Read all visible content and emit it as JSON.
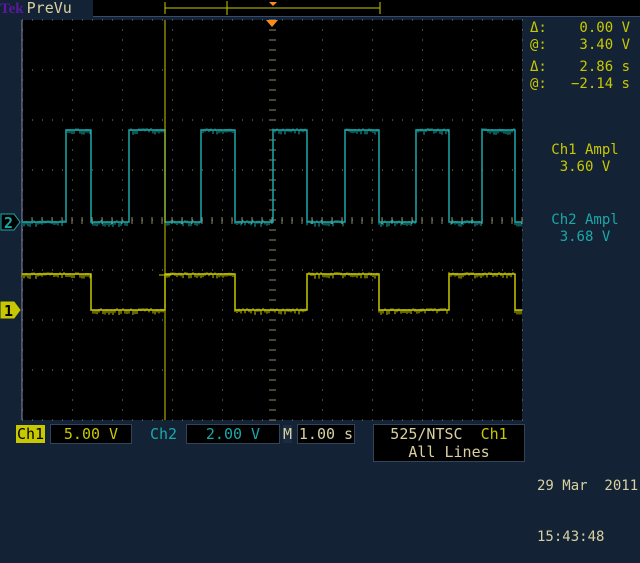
{
  "brand": {
    "logo": "Tek",
    "mode": "PreVu"
  },
  "cursors": {
    "volt_delta": "0.00 V",
    "volt_at": "3.40 V",
    "time_delta": "2.86 s",
    "time_at": "−2.14 s",
    "delta_symbol": "Δ:",
    "at_symbol": "@:"
  },
  "measurements": [
    {
      "label": "Ch1 Ampl",
      "value": "3.60 V",
      "color": "#c8c800"
    },
    {
      "label": "Ch2 Ampl",
      "value": "3.68 V",
      "color": "#1aa8a8"
    }
  ],
  "bottom": {
    "ch1_label": "Ch1",
    "ch1_scale": "5.00 V",
    "ch2_label": "Ch2",
    "ch2_scale": "2.00 V",
    "m_label": "M",
    "timebase": "1.00 s",
    "trigger_mode": "525/NTSC",
    "trigger_source": "Ch1",
    "trigger_lines": "All Lines",
    "date": "29 Mar  2011",
    "time": "15:43:48"
  },
  "markers": {
    "ch1": "1",
    "ch2": "2"
  },
  "colors": {
    "ch1": "#c8c800",
    "ch2": "#1aa8a8",
    "trigger": "#ff8c1a",
    "grid": "#8a8a6a"
  },
  "traces": {
    "time_range_s": [
      -5,
      5
    ],
    "ch1": {
      "volts_per_div": 5,
      "low_v": 0,
      "high_v": 3.6,
      "start_level": "high",
      "edges_s": [
        -3.62,
        -2.14,
        -0.74,
        0.7,
        2.14,
        3.54,
        4.86
      ]
    },
    "ch2": {
      "volts_per_div": 2,
      "low_v": 0,
      "high_v": 3.68,
      "start_level": "low",
      "edges_s": [
        -4.12,
        -3.62,
        -2.86,
        -2.14,
        -1.42,
        -0.74,
        0.02,
        0.7,
        1.46,
        2.14,
        2.88,
        3.54,
        4.2,
        4.86
      ]
    },
    "cursor_time_s": -2.14
  }
}
